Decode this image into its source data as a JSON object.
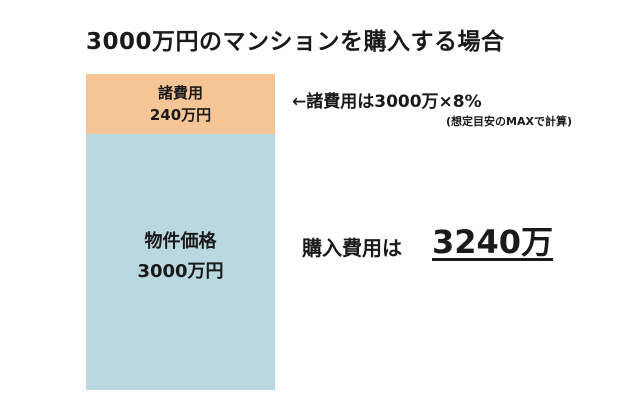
{
  "title": "3000万円のマンションを購入する場合",
  "fees_box": {
    "label": "諸費用",
    "value": "240万円",
    "color": "#f6c595"
  },
  "price_box": {
    "label": "物件価格",
    "value": "3000万円",
    "color": "#b9d8e0"
  },
  "note": {
    "text": "←諸費用は3000万×8%",
    "sub": "(想定目安のMAXで計算)"
  },
  "total": {
    "label": "購入費用は",
    "value": "3240万"
  }
}
